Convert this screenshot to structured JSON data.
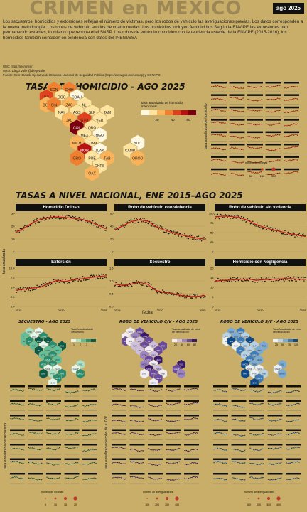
{
  "header": {
    "title": "CRIMEN en MEXICO",
    "date_badge": "ago 2025"
  },
  "intro": "Los secuestros, homicidios y extorsiones reflejan el número de víctimas, pero los robos de vehículo las averiguaciones previas. Los datos corresponden a la nueva metodología. Los robos de vehículo son los de cuatro ruedas. Los homicidios incluyen feminicidios Según la ENVIPE las extorsiones han permanecido estables, lo mismo que reporta el el SNSP. Los robos de vehículo coinciden con la tendencia estable de la ENVIPE (2015-2016), los homicidios también coinciden en tendencia con datos del INEGI/SSA",
  "web": "Web: https://elcrimen/",
  "author": "Autor: Diego Valle @diegovalle",
  "source": "Fuente: Secretariado Ejecutivo del Sistema Nacional de Seguridad Pública (https://www.gob.mx/sesnsp) y CONAPO",
  "homicide_map": {
    "title": "TASAS DE HOMICIDIO - AGO 2025",
    "legend_title": "tasa anualizada de homicidio intencional",
    "legend_ticks": [
      "20",
      "40",
      "60"
    ],
    "colors": [
      "#fff8e1",
      "#fde3a0",
      "#fbb35a",
      "#f08030",
      "#e0401c",
      "#b81212",
      "#7a0010"
    ],
    "states": [
      {
        "abbr": "SON",
        "level": 3
      },
      {
        "abbr": "CHIH",
        "level": 3
      },
      {
        "abbr": "BC",
        "level": 4
      },
      {
        "abbr": "DGO",
        "level": 1
      },
      {
        "abbr": "COAH",
        "level": 0
      },
      {
        "abbr": "BCS",
        "level": 2
      },
      {
        "abbr": "SIN",
        "level": 3
      },
      {
        "abbr": "ZAC",
        "level": 2
      },
      {
        "abbr": "NL",
        "level": 1
      },
      {
        "abbr": "NAY",
        "level": 1
      },
      {
        "abbr": "AGS",
        "level": 1
      },
      {
        "abbr": "SLP",
        "level": 1
      },
      {
        "abbr": "TAM",
        "level": 1
      },
      {
        "abbr": "JAL",
        "level": 2
      },
      {
        "abbr": "GTO",
        "level": 4
      },
      {
        "abbr": "VER",
        "level": 1
      },
      {
        "abbr": "COL",
        "level": 6
      },
      {
        "abbr": "QRO",
        "level": 1
      },
      {
        "abbr": "MEX",
        "level": 1
      },
      {
        "abbr": "HGO",
        "level": 0
      },
      {
        "abbr": "MICH",
        "level": 2
      },
      {
        "abbr": "CDMX",
        "level": 1
      },
      {
        "abbr": "YUC",
        "level": 0
      },
      {
        "abbr": "MOR",
        "level": 5
      },
      {
        "abbr": "TLAX",
        "level": 0
      },
      {
        "abbr": "CAMP",
        "level": 1
      },
      {
        "abbr": "GRO",
        "level": 3
      },
      {
        "abbr": "PUE",
        "level": 1
      },
      {
        "abbr": "TAB",
        "level": 2
      },
      {
        "abbr": "QROO",
        "level": 2
      },
      {
        "abbr": "CHPS",
        "level": 1
      },
      {
        "abbr": "OAX",
        "level": 2
      }
    ]
  },
  "homicide_small": {
    "ylabel": "tasa anualizada de homicidio",
    "size_legend_title": "número de víctimas",
    "size_legend_values": [
      "50",
      "150",
      "400"
    ]
  },
  "national": {
    "title": "TASAS A NIVEL NACIONAL, ENE 2015–AGO 2025",
    "ylabel": "tasa anualizada",
    "xlabel": "fecha",
    "x_ticks": [
      "2015",
      "2020",
      "2025"
    ],
    "panels": [
      {
        "title": "Homicidio Doloso",
        "y_ticks": [
          "30",
          "20",
          "10",
          "0"
        ],
        "ymax": 32,
        "values": [
          16.0,
          19.5,
          24.0,
          27.0,
          28.5,
          29.0,
          28.6,
          27.8,
          27.0,
          25.0,
          22.0,
          19.0
        ]
      },
      {
        "title": "Robo de vehículo con violencia",
        "y_ticks": [
          "60",
          "40",
          "20",
          "0"
        ],
        "ymax": 70,
        "values": [
          40.0,
          47.0,
          55.0,
          58.0,
          56.0,
          46.0,
          40.0,
          35.0,
          31.0,
          28.0,
          25.0,
          23.0
        ]
      },
      {
        "title": "Robo de vehículo sin violencia",
        "y_ticks": [
          "100",
          "75",
          "50",
          "25",
          "0"
        ],
        "ymax": 110,
        "values": [
          100.0,
          102.0,
          101.0,
          98.0,
          90.0,
          78.0,
          70.0,
          63.0,
          58.0,
          52.0,
          48.0,
          44.0
        ]
      },
      {
        "title": "Extorsión",
        "y_ticks": [
          "10.0",
          "7.5",
          "5.0",
          "2.5",
          "0.0"
        ],
        "ymax": 10,
        "values": [
          4.2,
          4.5,
          4.8,
          5.0,
          6.0,
          6.8,
          6.5,
          7.0,
          7.2,
          7.5,
          7.8,
          8.0
        ]
      },
      {
        "title": "Secuestro",
        "y_ticks": [
          "1.5",
          "1.0",
          "0.5",
          "0.0"
        ],
        "ymax": 1.9,
        "values": [
          1.1,
          1.05,
          1.1,
          1.2,
          1.1,
          0.8,
          0.7,
          0.65,
          0.55,
          0.5,
          0.5,
          0.55
        ]
      },
      {
        "title": "Homicidio con Negligencia",
        "y_ticks": [
          "20",
          "15",
          "10",
          "5",
          "0"
        ],
        "ymax": 22,
        "values": [
          14.5,
          15.0,
          15.2,
          15.5,
          15.8,
          15.0,
          15.4,
          15.6,
          15.8,
          16.0,
          15.7,
          15.5
        ]
      }
    ]
  },
  "maps3": [
    {
      "title": "SECUESTRO - AGO 2025",
      "legend_title": "Tasa Anualizada de Secuestros",
      "legend_ticks": [
        "1",
        "2",
        "3"
      ],
      "colors": [
        "#e6f7ef",
        "#a8e0c8",
        "#5fbf9a",
        "#2a8c6e",
        "#0e5a48"
      ]
    },
    {
      "title": "ROBO DE VEHÍCULO C/V - AGO 2025",
      "legend_title": "Tasa anualizada de robo de vehículo c/v",
      "legend_ticks": [
        "20",
        "40",
        "60",
        "80"
      ],
      "colors": [
        "#f1edf7",
        "#cdbfe0",
        "#9a84c2",
        "#6a4a9d",
        "#3a1a6a"
      ]
    },
    {
      "title": "ROBO DE VEHÍCULO S/V - AGO 2025",
      "legend_title": "Tasa Anualizada de robo de vehículo s/v",
      "legend_ticks": [
        "25",
        "50",
        "75",
        "100"
      ],
      "colors": [
        "#e8f1f8",
        "#b6d2ea",
        "#7aabd6",
        "#3d7cb8",
        "#0f4a88"
      ]
    }
  ],
  "bottom": {
    "ylabels": [
      "tasa anualizada de secuestro",
      "tasa anualizada de robo de v. C/V"
    ],
    "size_legends": [
      {
        "title": "número de víctimas",
        "values": [
          "5",
          "10",
          "15",
          "20"
        ]
      },
      {
        "title": "número de averiguaciones",
        "values": [
          "100",
          "200",
          "300",
          "400"
        ]
      },
      {
        "title": "número de averiguaciones",
        "values": [
          "100",
          "200",
          "300",
          "400"
        ]
      }
    ]
  }
}
